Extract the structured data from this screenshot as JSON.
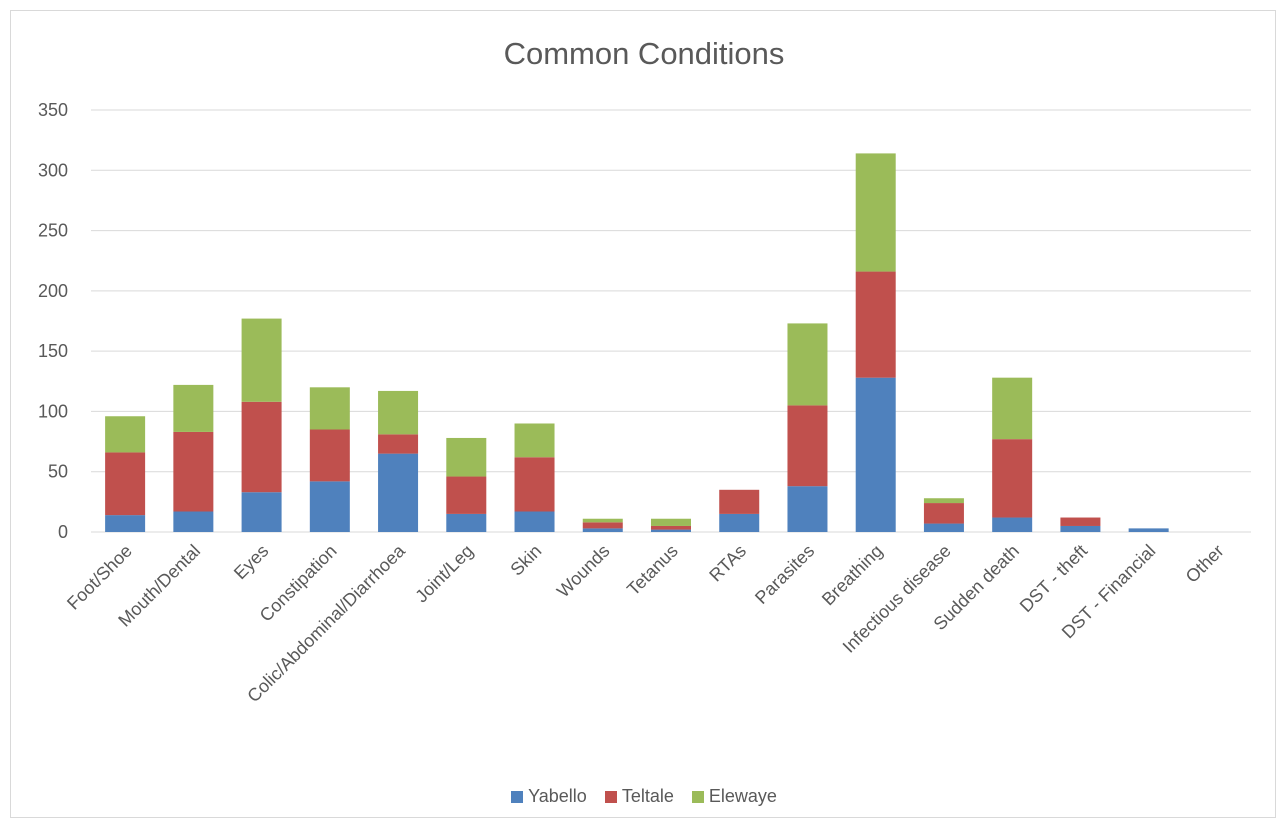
{
  "chart_data": {
    "type": "bar",
    "stacked": true,
    "title": "Common Conditions",
    "xlabel": "",
    "ylabel": "",
    "ylim": [
      0,
      350
    ],
    "yticks": [
      0,
      50,
      100,
      150,
      200,
      250,
      300,
      350
    ],
    "grid": true,
    "legend_position": "bottom",
    "categories": [
      "Foot/Shoe",
      "Mouth/Dental",
      "Eyes",
      "Constipation",
      "Colic/Abdominal/Diarrhoea",
      "Joint/Leg",
      "Skin",
      "Wounds",
      "Tetanus",
      "RTAs",
      "Parasites",
      "Breathing",
      "Infectious disease",
      "Sudden death",
      "DST - theft",
      "DST - Financial",
      "Other"
    ],
    "series": [
      {
        "name": "Yabello",
        "color": "#4f81bd",
        "values": [
          14,
          17,
          33,
          42,
          65,
          15,
          17,
          3,
          2,
          15,
          38,
          128,
          7,
          12,
          5,
          3,
          0
        ]
      },
      {
        "name": "Teltale",
        "color": "#c0504d",
        "values": [
          52,
          66,
          75,
          43,
          16,
          31,
          45,
          5,
          3,
          20,
          67,
          88,
          17,
          65,
          7,
          0,
          0
        ]
      },
      {
        "name": "Elewaye",
        "color": "#9bbb59",
        "values": [
          30,
          39,
          69,
          35,
          36,
          32,
          28,
          3,
          6,
          0,
          68,
          98,
          4,
          51,
          0,
          0,
          0
        ]
      }
    ]
  }
}
